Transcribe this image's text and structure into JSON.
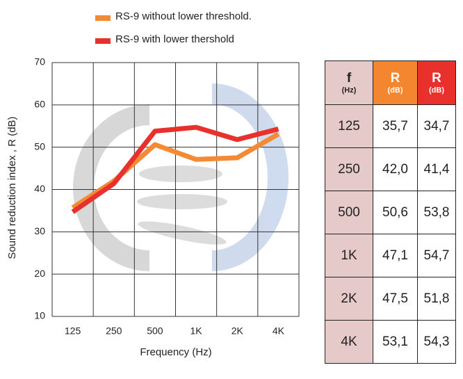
{
  "chart_data": {
    "type": "line",
    "categories": [
      "125",
      "250",
      "500",
      "1K",
      "2K",
      "4K"
    ],
    "series": [
      {
        "name": "RS-9 without lower threshold.",
        "color": "#f58a35",
        "values": [
          35.7,
          42.0,
          50.6,
          47.1,
          47.5,
          53.1
        ]
      },
      {
        "name": "RS-9 with lower thershold",
        "color": "#e8312d",
        "values": [
          34.7,
          41.4,
          53.8,
          54.7,
          51.8,
          54.3
        ]
      }
    ],
    "ylim": [
      10,
      70
    ],
    "yticks": [
      10,
      20,
      30,
      40,
      50,
      60,
      70
    ],
    "grid": true,
    "y_label": "Sound reduction index , R (dB)",
    "x_label": "Frequency  (Hz)"
  },
  "table": {
    "header": [
      {
        "main": "f",
        "unit": "(Hz)"
      },
      {
        "main": "R",
        "unit": "(dB)"
      },
      {
        "main": "R",
        "unit": "(dB)"
      }
    ],
    "rows": [
      [
        "125",
        "35,7",
        "34,7"
      ],
      [
        "250",
        "42,0",
        "41,4"
      ],
      [
        "500",
        "50,6",
        "53,8"
      ],
      [
        "1K",
        "47,1",
        "54,7"
      ],
      [
        "2K",
        "47,5",
        "51,8"
      ],
      [
        "4K",
        "53,1",
        "54,3"
      ]
    ]
  }
}
